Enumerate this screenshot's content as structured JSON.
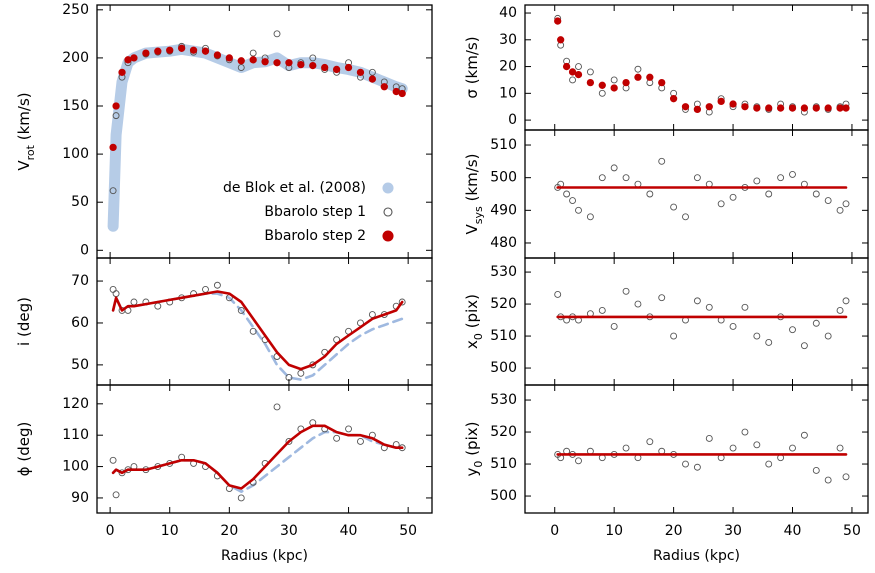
{
  "chart_data": [
    {
      "type": "scatter",
      "ylabel": [
        "V",
        "rot",
        " (km/s)"
      ],
      "legend": "lower right",
      "x": [
        0.5,
        1,
        2,
        3,
        4,
        6,
        8,
        10,
        12,
        14,
        16,
        18,
        20,
        22,
        24,
        26,
        28,
        30,
        32,
        34,
        36,
        38,
        40,
        42,
        44,
        46,
        48,
        49
      ],
      "xlim": [
        -2.2,
        54
      ],
      "xticks": [
        0,
        10,
        20,
        30,
        40,
        50
      ],
      "ylim": [
        -8,
        255
      ],
      "yticks": [
        0,
        50,
        100,
        150,
        200,
        250
      ],
      "series": [
        {
          "name": "de Blok et al. (2008)",
          "color": "#a9c3e3",
          "marker": "band",
          "values": [
            25,
            120,
            175,
            195,
            200,
            205,
            206,
            207,
            209,
            207,
            205,
            200,
            195,
            190,
            195,
            196,
            200,
            192,
            195,
            195,
            193,
            190,
            188,
            185,
            180,
            175,
            170,
            168
          ]
        },
        {
          "name": "Bbarolo step 1",
          "color": "#555555",
          "marker": "open",
          "values": [
            62,
            140,
            180,
            195,
            200,
            204,
            206,
            207,
            212,
            206,
            210,
            202,
            198,
            190,
            205,
            200,
            225,
            190,
            195,
            200,
            188,
            185,
            195,
            180,
            185,
            175,
            170,
            168
          ]
        },
        {
          "name": "Bbarolo step 2",
          "color": "#c00000",
          "marker": "filled",
          "values": [
            107,
            150,
            185,
            198,
            200,
            205,
            207,
            208,
            210,
            208,
            207,
            203,
            200,
            197,
            198,
            196,
            195,
            195,
            193,
            192,
            190,
            188,
            190,
            185,
            178,
            170,
            165,
            163
          ]
        }
      ]
    },
    {
      "type": "scatter",
      "ylabel": [
        "i (deg)"
      ],
      "x": [
        0.5,
        1,
        2,
        3,
        4,
        6,
        8,
        10,
        12,
        14,
        16,
        18,
        20,
        22,
        24,
        26,
        28,
        30,
        32,
        34,
        36,
        38,
        40,
        42,
        44,
        46,
        48,
        49
      ],
      "xlim": [
        -2.2,
        54
      ],
      "xticks": [
        0,
        10,
        20,
        30,
        40,
        50
      ],
      "ylim": [
        45.2,
        75.5
      ],
      "yticks": [
        50,
        60,
        70
      ],
      "series": [
        {
          "color": "#9fb9e0",
          "marker": "dashed",
          "values": [
            63,
            66,
            63,
            64,
            64,
            64.5,
            65,
            65.5,
            66,
            66.5,
            67,
            67,
            66,
            63,
            59,
            55,
            50,
            47,
            46.5,
            47.5,
            50,
            52.5,
            55,
            57,
            58.5,
            59.5,
            60.5,
            61
          ]
        },
        {
          "color": "#555555",
          "marker": "open",
          "values": [
            68,
            67,
            63,
            63,
            65,
            65,
            64,
            65,
            66,
            67,
            68,
            69,
            66,
            63,
            58,
            56,
            52,
            47,
            48,
            50,
            53,
            56,
            58,
            60,
            62,
            62,
            64,
            65
          ]
        },
        {
          "color": "#c00000",
          "marker": "line",
          "values": [
            63,
            66,
            63,
            64,
            64,
            64.5,
            65,
            65.5,
            66,
            66.5,
            67,
            67.5,
            67,
            65,
            61,
            57,
            53,
            50,
            49,
            50,
            52,
            55,
            57,
            59,
            61,
            62,
            63,
            65
          ]
        }
      ]
    },
    {
      "type": "scatter",
      "ylabel": [
        "ϕ (deg)"
      ],
      "xlabel": "Radius (kpc)",
      "x": [
        0.5,
        1,
        2,
        3,
        4,
        6,
        8,
        10,
        12,
        14,
        16,
        18,
        20,
        22,
        24,
        26,
        28,
        30,
        32,
        34,
        36,
        38,
        40,
        42,
        44,
        46,
        48,
        49
      ],
      "xlim": [
        -2.2,
        54
      ],
      "xticks": [
        0,
        10,
        20,
        30,
        40,
        50
      ],
      "ylim": [
        85.2,
        126
      ],
      "yticks": [
        90,
        100,
        110,
        120
      ],
      "series": [
        {
          "color": "#9fb9e0",
          "marker": "dashed",
          "values": [
            98,
            99,
            98,
            99,
            99,
            99,
            100,
            101,
            102,
            102,
            101,
            98,
            94,
            92,
            94,
            97,
            100,
            103,
            106,
            109,
            111,
            111,
            110,
            110,
            108,
            107,
            106,
            106
          ]
        },
        {
          "color": "#555555",
          "marker": "open",
          "values": [
            102,
            91,
            98,
            99,
            100,
            99,
            100,
            101,
            103,
            101,
            100,
            97,
            93,
            90,
            95,
            101,
            119,
            108,
            112,
            114,
            112,
            109,
            112,
            108,
            110,
            106,
            107,
            106
          ]
        },
        {
          "color": "#c00000",
          "marker": "line",
          "values": [
            98,
            99,
            98,
            99,
            99,
            99,
            100,
            101,
            102,
            102,
            101,
            98,
            94,
            93,
            96,
            100,
            104,
            108,
            111,
            113,
            113,
            111,
            110,
            110,
            109,
            107,
            106,
            106
          ]
        }
      ]
    },
    {
      "type": "scatter",
      "ylabel": [
        "σ (km/s)"
      ],
      "x": [
        0.5,
        1,
        2,
        3,
        4,
        6,
        8,
        10,
        12,
        14,
        16,
        18,
        20,
        22,
        24,
        26,
        28,
        30,
        32,
        34,
        36,
        38,
        40,
        42,
        44,
        46,
        48,
        49
      ],
      "xlim": [
        -5,
        52.7
      ],
      "xticks": [
        0,
        10,
        20,
        30,
        40,
        50
      ],
      "ylim": [
        -3.7,
        43
      ],
      "yticks": [
        0,
        10,
        20,
        30,
        40
      ],
      "series": [
        {
          "color": "#555555",
          "marker": "open",
          "values": [
            38,
            28,
            22,
            15,
            20,
            18,
            10,
            15,
            12,
            19,
            14,
            12,
            10,
            4,
            6,
            3,
            8,
            5,
            6,
            5,
            4,
            6,
            5,
            3,
            5,
            4,
            5,
            6
          ]
        },
        {
          "color": "#c00000",
          "marker": "filled",
          "values": [
            37,
            30,
            20,
            18,
            17,
            14,
            13,
            12,
            14,
            16,
            16,
            14,
            8,
            5,
            4,
            5,
            7,
            6,
            5,
            4.5,
            4.5,
            4.5,
            4.5,
            4.5,
            4.5,
            4.5,
            4.5,
            4.5
          ]
        }
      ]
    },
    {
      "type": "scatter",
      "ylabel": [
        "V",
        "sys",
        " (km/s)"
      ],
      "x": [
        0.5,
        1,
        2,
        3,
        4,
        6,
        8,
        10,
        12,
        14,
        16,
        18,
        20,
        22,
        24,
        26,
        28,
        30,
        32,
        34,
        36,
        38,
        40,
        42,
        44,
        46,
        48,
        49
      ],
      "xlim": [
        -5,
        52.7
      ],
      "xticks": [
        0,
        10,
        20,
        30,
        40,
        50
      ],
      "ylim": [
        475.4,
        514.6
      ],
      "yticks": [
        480,
        490,
        500,
        510
      ],
      "series": [
        {
          "color": "#555555",
          "marker": "open",
          "values": [
            497,
            498,
            495,
            493,
            490,
            488,
            500,
            503,
            500,
            498,
            495,
            505,
            491,
            488,
            500,
            498,
            492,
            494,
            497,
            499,
            495,
            500,
            501,
            498,
            495,
            493,
            490,
            492
          ]
        },
        {
          "color": "#c00000",
          "marker": "line",
          "values": [
            497,
            497,
            497,
            497,
            497,
            497,
            497,
            497,
            497,
            497,
            497,
            497,
            497,
            497,
            497,
            497,
            497,
            497,
            497,
            497,
            497,
            497,
            497,
            497,
            497,
            497,
            497,
            497
          ]
        }
      ]
    },
    {
      "type": "scatter",
      "ylabel": [
        "x",
        "0",
        " (pix)"
      ],
      "x": [
        0.5,
        1,
        2,
        3,
        4,
        6,
        8,
        10,
        12,
        14,
        16,
        18,
        20,
        22,
        24,
        26,
        28,
        30,
        32,
        34,
        36,
        38,
        40,
        42,
        44,
        46,
        48,
        49
      ],
      "xlim": [
        -5,
        52.7
      ],
      "xticks": [
        0,
        10,
        20,
        30,
        40,
        50
      ],
      "ylim": [
        494.7,
        534.4
      ],
      "yticks": [
        500,
        510,
        520,
        530
      ],
      "series": [
        {
          "color": "#555555",
          "marker": "open",
          "values": [
            523,
            516,
            515,
            516,
            515,
            517,
            518,
            513,
            524,
            520,
            516,
            522,
            510,
            515,
            521,
            519,
            515,
            513,
            519,
            510,
            508,
            516,
            512,
            507,
            514,
            510,
            518,
            521
          ]
        },
        {
          "color": "#c00000",
          "marker": "line",
          "values": [
            516,
            516,
            516,
            516,
            516,
            516,
            516,
            516,
            516,
            516,
            516,
            516,
            516,
            516,
            516,
            516,
            516,
            516,
            516,
            516,
            516,
            516,
            516,
            516,
            516,
            516,
            516,
            516
          ]
        }
      ]
    },
    {
      "type": "scatter",
      "ylabel": [
        "y",
        "0",
        " (pix)"
      ],
      "xlabel": "Radius (kpc)",
      "x": [
        0.5,
        1,
        2,
        3,
        4,
        6,
        8,
        10,
        12,
        14,
        16,
        18,
        20,
        22,
        24,
        26,
        28,
        30,
        32,
        34,
        36,
        38,
        40,
        42,
        44,
        46,
        48,
        49
      ],
      "xlim": [
        -5,
        52.7
      ],
      "xticks": [
        0,
        10,
        20,
        30,
        40,
        50
      ],
      "ylim": [
        494.7,
        534.7
      ],
      "yticks": [
        500,
        510,
        520,
        530
      ],
      "series": [
        {
          "color": "#555555",
          "marker": "open",
          "values": [
            513,
            512,
            514,
            513,
            511,
            514,
            512,
            513,
            515,
            512,
            517,
            514,
            513,
            510,
            509,
            518,
            512,
            515,
            520,
            516,
            510,
            512,
            515,
            519,
            508,
            505,
            515,
            506
          ]
        },
        {
          "color": "#c00000",
          "marker": "line",
          "values": [
            513,
            513,
            513,
            513,
            513,
            513,
            513,
            513,
            513,
            513,
            513,
            513,
            513,
            513,
            513,
            513,
            513,
            513,
            513,
            513,
            513,
            513,
            513,
            513,
            513,
            513,
            513,
            513
          ]
        }
      ]
    }
  ]
}
